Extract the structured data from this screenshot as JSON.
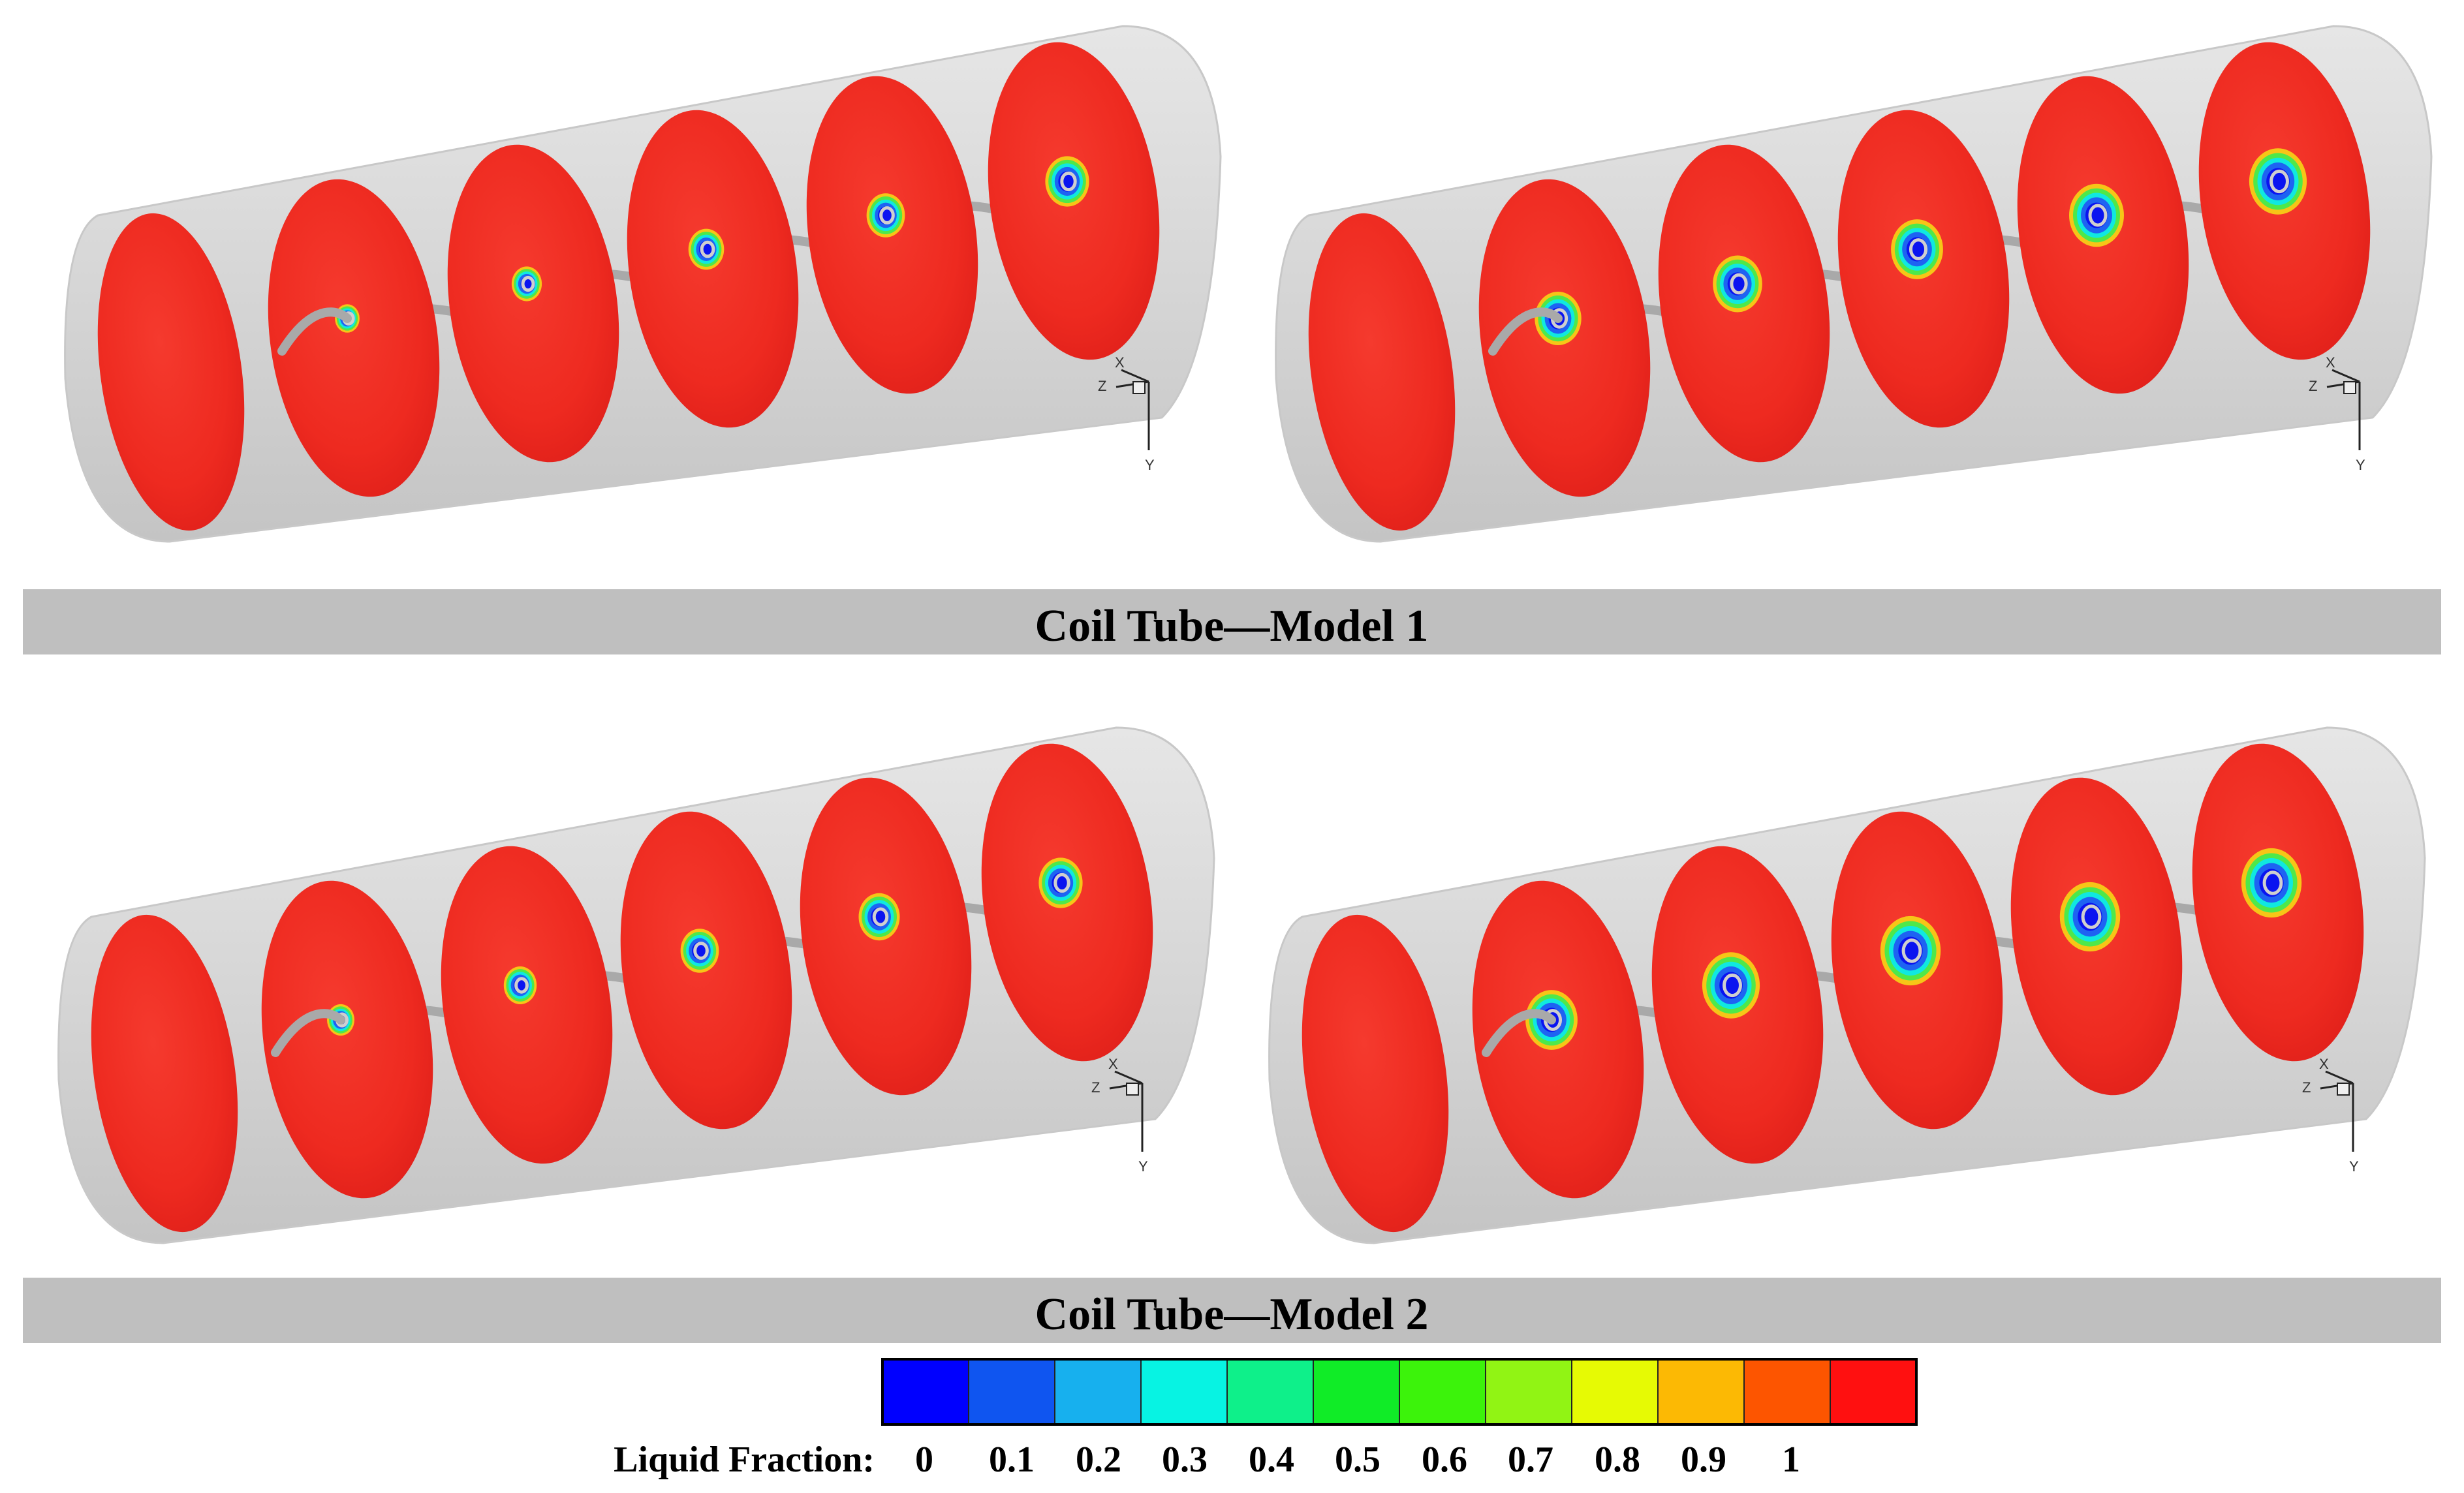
{
  "panels": [
    {
      "id": "model1-left",
      "core_scale": [
        0.45,
        0.55,
        0.65,
        0.7,
        0.8
      ]
    },
    {
      "id": "model1-right",
      "core_scale": [
        0.85,
        0.9,
        0.95,
        1.0,
        1.05
      ]
    },
    {
      "id": "model2-left",
      "core_scale": [
        0.5,
        0.6,
        0.7,
        0.75,
        0.8
      ]
    },
    {
      "id": "model2-right",
      "core_scale": [
        0.95,
        1.05,
        1.1,
        1.1,
        1.1
      ]
    }
  ],
  "banners": {
    "model1": "Coil Tube—Model 1",
    "model2": "Coil Tube—Model 2"
  },
  "axis": {
    "x": "X",
    "y": "Y",
    "z": "Z"
  },
  "colorbar": {
    "label": "Liquid Fraction:",
    "ticks": [
      "0",
      "0.1",
      "0.2",
      "0.3",
      "0.4",
      "0.5",
      "0.6",
      "0.7",
      "0.8",
      "0.9",
      "1"
    ],
    "colors": [
      "#0000ff",
      "#0f55f0",
      "#17b0ee",
      "#07f3e3",
      "#0ef08a",
      "#10ec27",
      "#3cf30b",
      "#91f414",
      "#e6fa04",
      "#fcb904",
      "#fd5500",
      "#ff1010"
    ]
  },
  "colors": {
    "tube": "#d9d9d9",
    "disc": "#f02b22",
    "banner": "#bfbfbf"
  }
}
